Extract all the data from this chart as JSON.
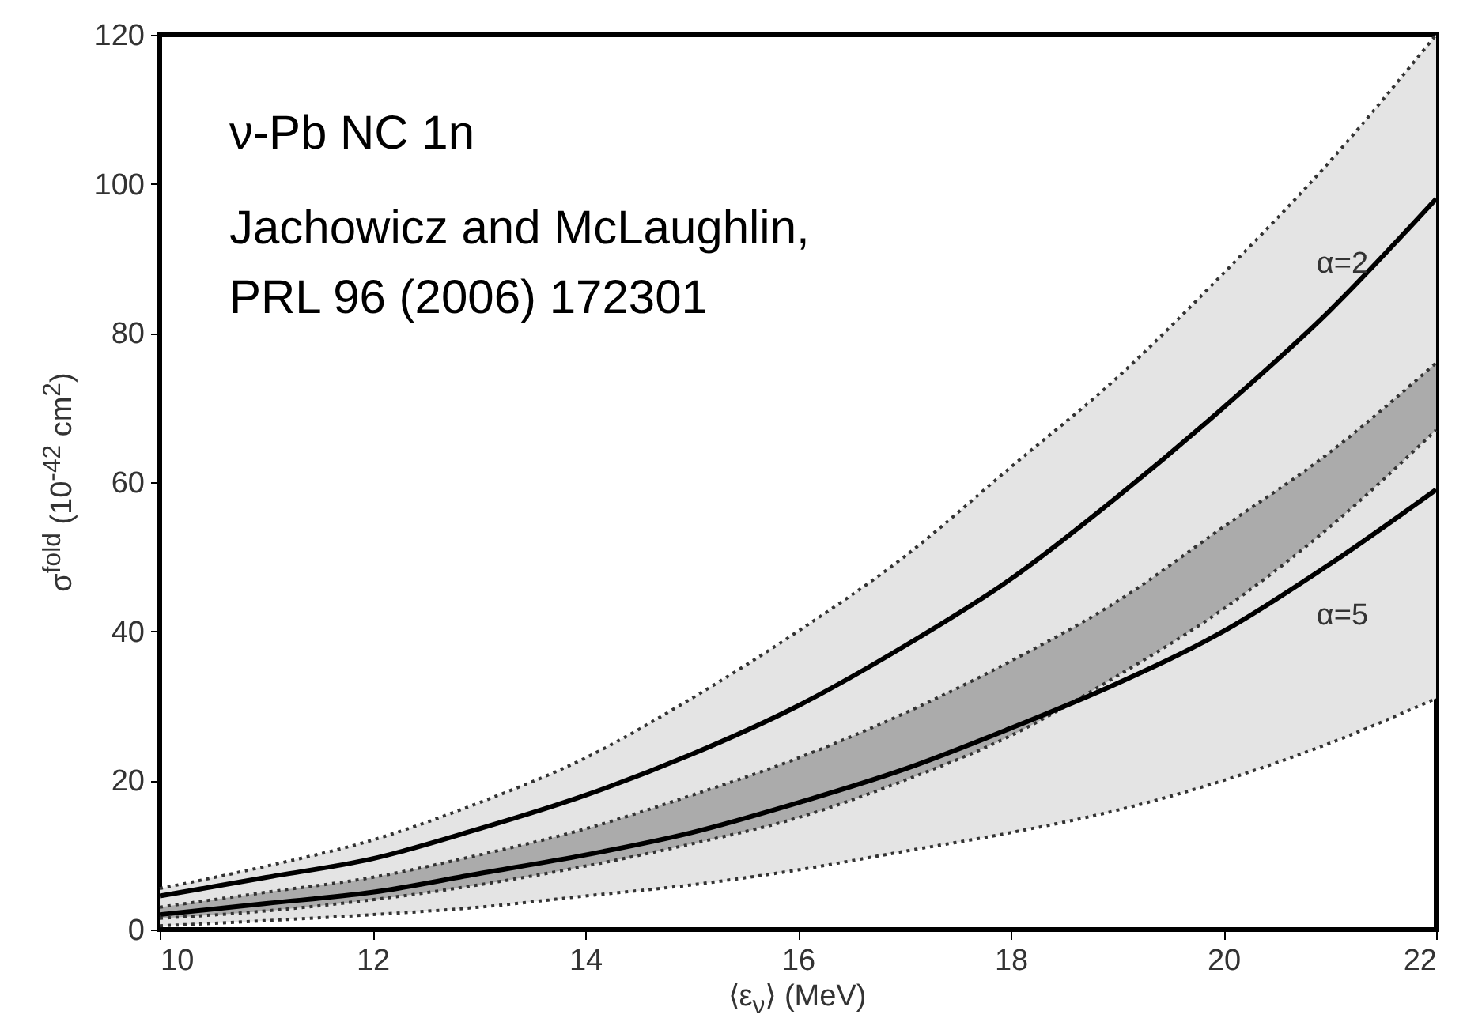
{
  "chart_data": {
    "type": "line",
    "xlabel": "⟨ε$_{ν}$⟩ (MeV)",
    "ylabel": "σ$^{fold}$ (10$^{-42}$ cm$^{2}$)",
    "x": [
      10,
      11,
      12,
      13,
      14,
      15,
      16,
      17,
      18,
      19,
      20,
      21,
      22
    ],
    "series": [
      {
        "type": "area",
        "color": "#e4e4e4",
        "line_style": "dotted",
        "values": [
          5.5,
          8.5,
          12,
          17,
          23,
          31,
          40,
          50,
          62,
          74,
          88,
          103,
          120
        ]
      },
      {
        "type": "area",
        "color": "#ababab",
        "line_style": "dotted",
        "values": [
          3,
          5,
          7,
          10,
          13.5,
          18,
          23,
          29,
          36,
          44,
          54,
          64,
          76
        ]
      },
      {
        "type": "line",
        "color": "#333333",
        "line_style": "dotted",
        "values": [
          1.5,
          2.5,
          4,
          6,
          8.5,
          11.5,
          15,
          20,
          26,
          34,
          43,
          54,
          67
        ]
      },
      {
        "type": "line",
        "color": "#333333",
        "line_style": "dotted",
        "values": [
          0.5,
          1.2,
          2,
          3,
          4.5,
          6,
          8,
          10.5,
          13,
          16,
          20,
          25,
          31
        ]
      },
      {
        "name": "α=2",
        "color": "#000000",
        "line_style": "solid",
        "values": [
          4.5,
          7,
          9.5,
          13.5,
          18,
          23.5,
          30,
          38,
          47,
          58,
          70,
          83,
          98
        ]
      },
      {
        "name": "α=5",
        "color": "#000000",
        "line_style": "solid",
        "values": [
          2,
          3.5,
          5,
          7.5,
          10,
          13,
          17,
          21.5,
          27,
          33,
          40,
          49,
          59
        ]
      }
    ],
    "xlim": [
      10,
      22
    ],
    "xticks": [
      10,
      12,
      14,
      16,
      18,
      20,
      22
    ],
    "ylim": [
      0,
      120
    ],
    "yticks": [
      0,
      20,
      40,
      60,
      80,
      100,
      120
    ],
    "grid": false,
    "legend": false,
    "annotations": [
      "ν-Pb NC 1n",
      "Jachowicz and McLaughlin,",
      "PRL 96 (2006) 172301"
    ]
  }
}
